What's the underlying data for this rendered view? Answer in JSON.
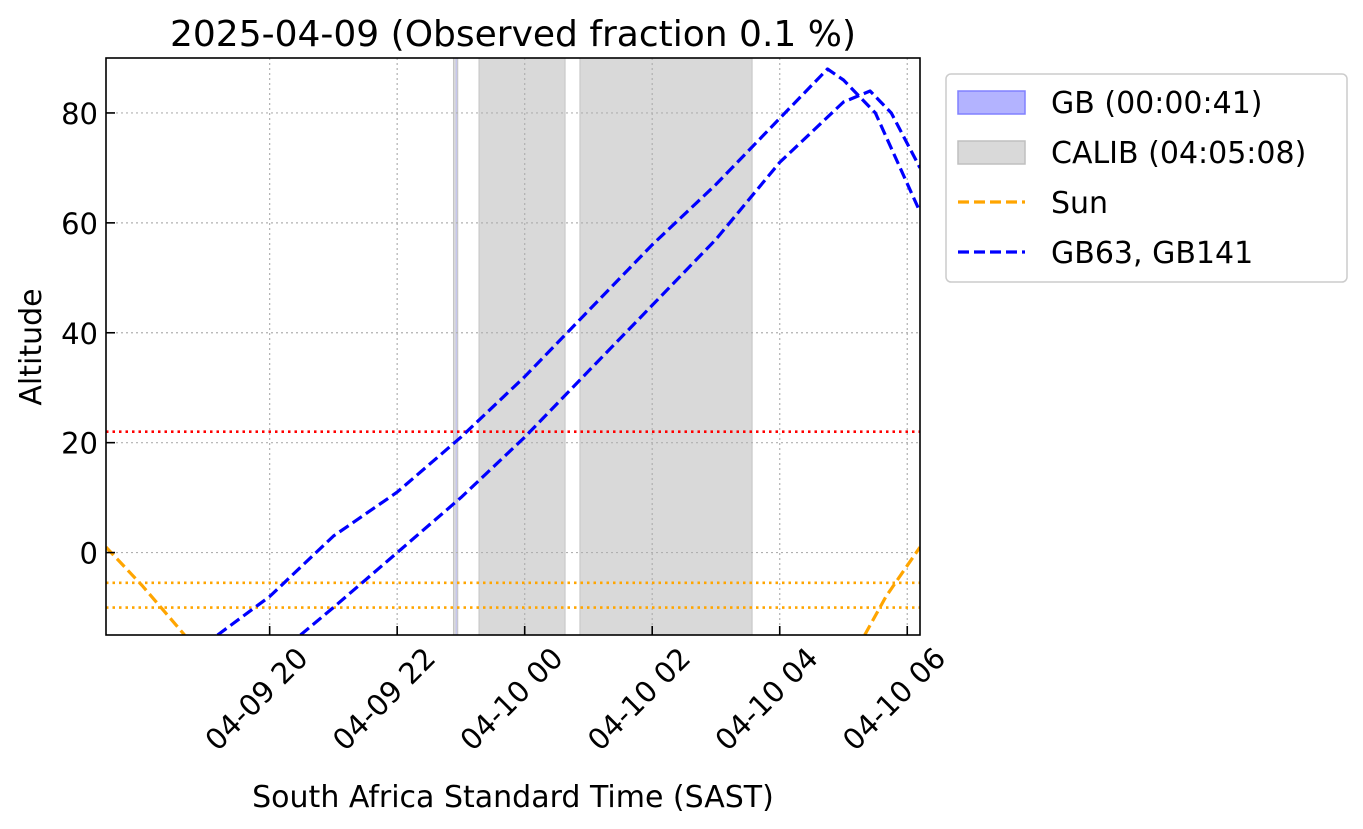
{
  "chart_data": {
    "type": "line",
    "title": "2025-04-09 (Observed fraction 0.1 %)",
    "xlabel": "South Africa Standard Time (SAST)",
    "ylabel": "Altitude",
    "xlim": [
      "2025-04-09 17:26",
      "2025-04-10 06:12"
    ],
    "ylim": [
      -15,
      90
    ],
    "grid": true,
    "legend_placement": "outside-upper-right",
    "x_ticks": [
      {
        "value": "2025-04-09 20:00",
        "label": "04-09 20"
      },
      {
        "value": "2025-04-09 22:00",
        "label": "04-09 22"
      },
      {
        "value": "2025-04-10 00:00",
        "label": "04-10 00"
      },
      {
        "value": "2025-04-10 02:00",
        "label": "04-10 02"
      },
      {
        "value": "2025-04-10 04:00",
        "label": "04-10 04"
      },
      {
        "value": "2025-04-10 06:00",
        "label": "04-10 06"
      }
    ],
    "y_ticks": [
      {
        "value": 0,
        "label": "0"
      },
      {
        "value": 20,
        "label": "20"
      },
      {
        "value": 40,
        "label": "40"
      },
      {
        "value": 60,
        "label": "60"
      },
      {
        "value": 80,
        "label": "80"
      }
    ],
    "legend": [
      {
        "label": "GB (00:00:41)",
        "kind": "patch",
        "color": "#b3b3ff",
        "edge": "#8080ff"
      },
      {
        "label": "CALIB (04:05:08)",
        "kind": "patch",
        "color": "#d9d9d9",
        "edge": "#bfbfbf"
      },
      {
        "label": "Sun",
        "kind": "dashed",
        "color": "#ffa500"
      },
      {
        "label": "GB63, GB141",
        "kind": "dashed",
        "color": "#0000ff"
      }
    ],
    "shaded_intervals": [
      {
        "name": "GB",
        "color": "#b3b3ff",
        "intervals": [
          [
            "2025-04-09 22:55:00",
            "2025-04-09 22:55:41"
          ]
        ]
      },
      {
        "name": "CALIB",
        "color": "#d9d9d9",
        "intervals": [
          [
            "2025-04-09 22:53",
            "2025-04-09 22:57"
          ],
          [
            "2025-04-09 23:17",
            "2025-04-10 00:38"
          ],
          [
            "2025-04-10 00:52",
            "2025-04-10 03:34"
          ]
        ]
      }
    ],
    "hlines": [
      {
        "y": 22,
        "color": "#ff0000",
        "style": "dotted"
      },
      {
        "y": -5.5,
        "color": "#ffa500",
        "style": "dotted"
      },
      {
        "y": -10,
        "color": "#ffa500",
        "style": "dotted"
      }
    ],
    "series": [
      {
        "name": "Sun",
        "color": "#ffa500",
        "style": "dashed",
        "points": [
          [
            "2025-04-09 17:26",
            1
          ],
          [
            "2025-04-09 18:00",
            -6
          ],
          [
            "2025-04-09 18:40",
            -15
          ]
        ]
      },
      {
        "name": "Sun",
        "color": "#ffa500",
        "style": "dashed",
        "points": [
          [
            "2025-04-10 05:20",
            -15
          ],
          [
            "2025-04-10 05:40",
            -8
          ],
          [
            "2025-04-10 06:12",
            1
          ]
        ]
      },
      {
        "name": "GB63",
        "color": "#0000ff",
        "style": "dashed",
        "points": [
          [
            "2025-04-09 19:11",
            -15
          ],
          [
            "2025-04-09 20:00",
            -8
          ],
          [
            "2025-04-09 21:00",
            3
          ],
          [
            "2025-04-09 22:00",
            11
          ],
          [
            "2025-04-09 23:00",
            21
          ],
          [
            "2025-04-10 00:00",
            32
          ],
          [
            "2025-04-10 01:00",
            44
          ],
          [
            "2025-04-10 02:00",
            56
          ],
          [
            "2025-04-10 03:00",
            67
          ],
          [
            "2025-04-10 04:00",
            79
          ],
          [
            "2025-04-10 04:45",
            88
          ],
          [
            "2025-04-10 05:00",
            86
          ],
          [
            "2025-04-10 05:30",
            80
          ],
          [
            "2025-04-10 06:12",
            62
          ]
        ]
      },
      {
        "name": "GB141",
        "color": "#0000ff",
        "style": "dashed",
        "points": [
          [
            "2025-04-09 20:29",
            -15
          ],
          [
            "2025-04-09 21:00",
            -10
          ],
          [
            "2025-04-09 22:00",
            0
          ],
          [
            "2025-04-09 23:00",
            10
          ],
          [
            "2025-04-10 00:00",
            21
          ],
          [
            "2025-04-10 01:00",
            33
          ],
          [
            "2025-04-10 02:00",
            45
          ],
          [
            "2025-04-10 03:00",
            57
          ],
          [
            "2025-04-10 04:00",
            71
          ],
          [
            "2025-04-10 05:00",
            82
          ],
          [
            "2025-04-10 05:25",
            84
          ],
          [
            "2025-04-10 05:45",
            80
          ],
          [
            "2025-04-10 06:12",
            70
          ]
        ]
      }
    ]
  }
}
